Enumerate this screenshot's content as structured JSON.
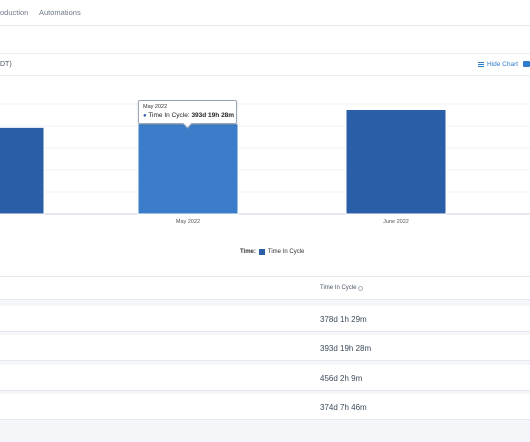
{
  "nav": {
    "tabs": [
      {
        "label": "oduction"
      },
      {
        "label": "Automations"
      }
    ]
  },
  "chart_header": {
    "timezone_fragment": "DT)",
    "hide_chart_label": "Hide Chart"
  },
  "tooltip": {
    "date": "May 2022",
    "series_label": "Time In Cycle:",
    "value": "393d 19h 28m"
  },
  "legend": {
    "title": "Time:",
    "series_name": "Time In Cycle"
  },
  "table": {
    "header": "Time In Cycle",
    "rows": [
      {
        "value": "378d 1h 29m"
      },
      {
        "value": "393d 19h 28m"
      },
      {
        "value": "456d 2h 9m"
      },
      {
        "value": "374d 7h 46m"
      }
    ]
  },
  "colors": {
    "bar": "#2a5fa8",
    "bar_hover": "#3b7dc9",
    "link": "#2f7cc9"
  },
  "chart_data": {
    "type": "bar",
    "categories": [
      "",
      "May 2022",
      "June 2022"
    ],
    "series": [
      {
        "name": "Time In Cycle",
        "values": [
          378.06,
          393.81,
          456.09
        ]
      }
    ],
    "ylim": [
      0,
      480
    ],
    "xlabel": "",
    "ylabel": "",
    "grid": true,
    "legend_placement": "bottom-center"
  }
}
